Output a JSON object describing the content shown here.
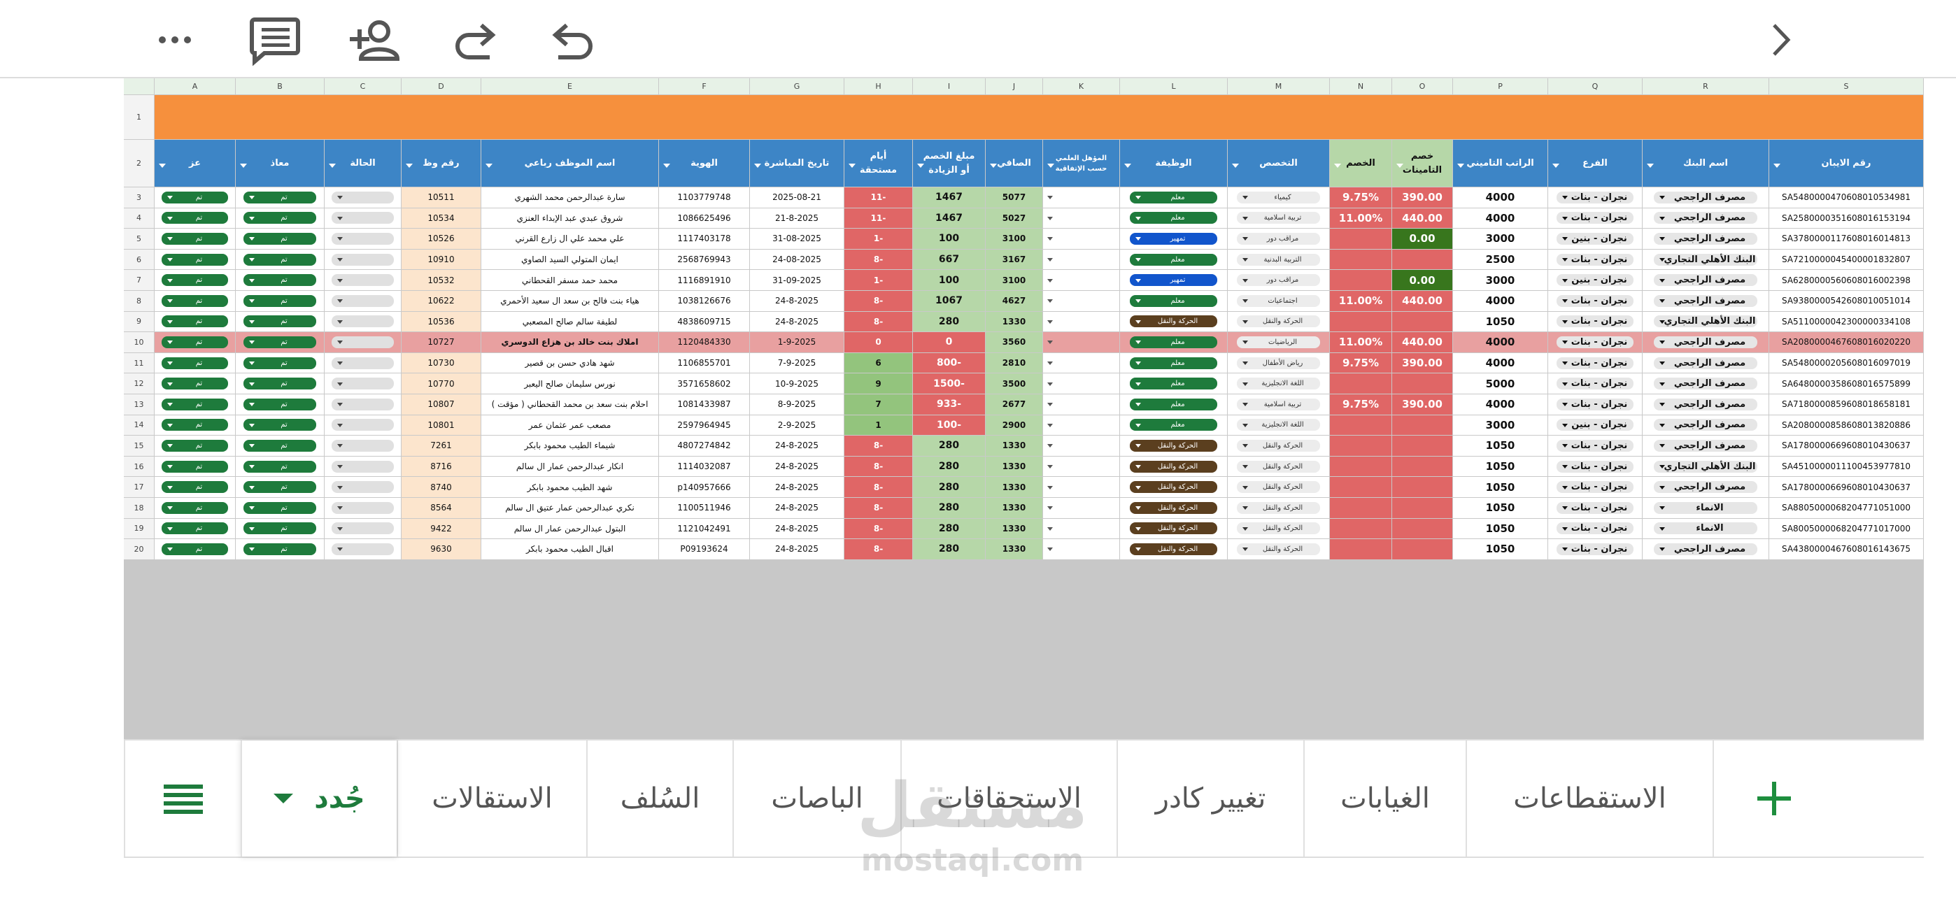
{
  "sheet": {
    "column_letters": [
      "A",
      "B",
      "C",
      "D",
      "E",
      "F",
      "G",
      "H",
      "I",
      "J",
      "K",
      "L",
      "M",
      "N",
      "O",
      "P",
      "Q",
      "R",
      "S"
    ],
    "row_numbers": [
      1,
      2,
      3,
      4,
      5,
      6,
      7,
      8,
      9,
      10,
      11,
      12,
      13,
      14,
      15,
      16,
      17,
      18,
      19,
      20
    ],
    "headers": [
      "عز",
      "معاذ",
      "الحالة",
      "رقم وظ",
      "اسم الموظف رباعي",
      "الهوية",
      "تاريخ المباشرة",
      "أيام مستحقة",
      "مبلغ الخصم أو الزيادة",
      "الصافي",
      "المؤهل العلمي حسب الإتفاقية",
      "الوظيفة",
      "التخصص",
      "الخصم",
      "خصم التامينات",
      "الراتب التاميني",
      "الفرع",
      "اسم البنك",
      "رقم الايبان"
    ],
    "rows": [
      [
        "تم",
        "تم",
        "",
        "10511",
        "سارة عبدالرحمن محمد الشهري",
        "1103779748",
        "2025-08-21",
        "-11",
        "1467",
        "5077",
        "",
        "معلم",
        "كيمياء",
        "9.75%",
        "390.00",
        "4000",
        "نجران - بنات",
        "مصرف الراجحي",
        "SA5480000470608010534981"
      ],
      [
        "تم",
        "تم",
        "",
        "10534",
        "شروق عبدي عبد الإبداء العنزي",
        "1086625496",
        "21-8-2025",
        "-11",
        "1467",
        "5027",
        "",
        "معلم",
        "تربية اسلامية",
        "11.00%",
        "440.00",
        "4000",
        "نجران - بنات",
        "مصرف الراجحي",
        "SA2580000351608016153194"
      ],
      [
        "تم",
        "تم",
        "",
        "10526",
        "علي محمد علي ال زارع القرني",
        "1117403178",
        "31-08-2025",
        "-1",
        "100",
        "3100",
        "",
        "تمهير",
        "مراقب دور",
        "",
        "0.00",
        "3000",
        "نجران - بنين",
        "مصرف الراجحي",
        "SA3780000117608016014813"
      ],
      [
        "تم",
        "تم",
        "",
        "10910",
        "ايمان المتولي السيد الصاوي",
        "2568769943",
        "24-08-2025",
        "-8",
        "667",
        "3167",
        "",
        "معلم",
        "التربية البدنية",
        "",
        "",
        "2500",
        "نجران - بنات",
        "البنك الأهلي التجاري",
        "SA7210000045400001832807"
      ],
      [
        "تم",
        "تم",
        "",
        "10532",
        "محمد حمد مسفر القحطاني",
        "1116891910",
        "31-09-2025",
        "-1",
        "100",
        "3100",
        "",
        "تمهير",
        "مراقب دور",
        "",
        "0.00",
        "3000",
        "نجران - بنين",
        "مصرف الراجحي",
        "SA6280000560608016002398"
      ],
      [
        "تم",
        "تم",
        "",
        "10622",
        "هياء بنت فالح بن سعد ال سعيد الأحمري",
        "1038126676",
        "24-8-2025",
        "-8",
        "1067",
        "4627",
        "",
        "معلم",
        "اجتماعيات",
        "11.00%",
        "440.00",
        "4000",
        "نجران - بنات",
        "مصرف الراجحي",
        "SA9380000542608010051014"
      ],
      [
        "تم",
        "تم",
        "",
        "10536",
        "لطيفة سالم صالح المصعبي",
        "4838609715",
        "24-8-2025",
        "-8",
        "280",
        "1330",
        "",
        "الحركة والنقل",
        "الحركة والنقل",
        "",
        "",
        "1050",
        "نجران - بنات",
        "البنك الأهلي التجاري",
        "SA5110000042300000334108"
      ],
      [
        "تم",
        "تم",
        "",
        "10727",
        "املاك بنت خالد بن هزاع الدوسري",
        "1120484330",
        "1-9-2025",
        "0",
        "0",
        "3560",
        "",
        "معلم",
        "الرياضيات",
        "11.00%",
        "440.00",
        "4000",
        "نجران - بنات",
        "مصرف الراجحي",
        "SA2080000467608016020220"
      ],
      [
        "تم",
        "تم",
        "",
        "10730",
        "شهد هادي حسن بن قصير",
        "1106855701",
        "7-9-2025",
        "6",
        "-800",
        "2810",
        "",
        "معلم",
        "رياض الأطفال",
        "9.75%",
        "390.00",
        "4000",
        "نجران - بنات",
        "مصرف الراجحي",
        "SA5480000205608016097019"
      ],
      [
        "تم",
        "تم",
        "",
        "10770",
        "نورس سليمان صالح اليعبر",
        "3571658602",
        "10-9-2025",
        "9",
        "-1500",
        "3500",
        "",
        "معلم",
        "اللغة الانجليزية",
        "",
        "",
        "5000",
        "نجران - بنات",
        "مصرف الراجحي",
        "SA6480000358608016575899"
      ],
      [
        "تم",
        "تم",
        "",
        "10807",
        "احلام بنت سعد بن محمد القحطاني ( مؤقت )",
        "1081433987",
        "8-9-2025",
        "7",
        "-933",
        "2677",
        "",
        "معلم",
        "تربية اسلامية",
        "9.75%",
        "390.00",
        "4000",
        "نجران - بنات",
        "مصرف الراجحي",
        "SA7180000859608018658181"
      ],
      [
        "تم",
        "تم",
        "",
        "10801",
        "مصعب عمر عثمان عمر",
        "2597964945",
        "2-9-2025",
        "1",
        "-100",
        "2900",
        "",
        "معلم",
        "اللغة الانجليزية",
        "",
        "",
        "3000",
        "نجران - بنين",
        "مصرف الراجحي",
        "SA2080000858608013820886"
      ],
      [
        "تم",
        "تم",
        "",
        "7261",
        "شيماء الطيب محمود بابكر",
        "4807274842",
        "24-8-2025",
        "-8",
        "280",
        "1330",
        "",
        "الحركة والنقل",
        "الحركة والنقل",
        "",
        "",
        "1050",
        "نجران - بنات",
        "مصرف الراجحي",
        "SA1780000669608010430637"
      ],
      [
        "تم",
        "تم",
        "",
        "8716",
        "انكار عبدالرحمن عمار ال سالم",
        "1114032087",
        "24-8-2025",
        "-8",
        "280",
        "1330",
        "",
        "الحركة والنقل",
        "الحركة والنقل",
        "",
        "",
        "1050",
        "نجران - بنات",
        "البنك الأهلي التجاري",
        "SA4510000011100453977810"
      ],
      [
        "تم",
        "تم",
        "",
        "8740",
        "شهد الطيب محمود بابكر",
        "p140957666",
        "24-8-2025",
        "-8",
        "280",
        "1330",
        "",
        "الحركة والنقل",
        "الحركة والنقل",
        "",
        "",
        "1050",
        "نجران - بنات",
        "مصرف الراجحي",
        "SA1780000669608010430637"
      ],
      [
        "تم",
        "تم",
        "",
        "8564",
        "نكري عبدالرحمن عمار عتيق ال سالم",
        "1100511946",
        "24-8-2025",
        "-8",
        "280",
        "1330",
        "",
        "الحركة والنقل",
        "الحركة والنقل",
        "",
        "",
        "1050",
        "نجران - بنات",
        "الانماء",
        "SA8805000068204771051000"
      ],
      [
        "تم",
        "تم",
        "",
        "9422",
        "البتول عبدالرحمن عمار ال سالم",
        "1121042491",
        "24-8-2025",
        "-8",
        "280",
        "1330",
        "",
        "الحركة والنقل",
        "الحركة والنقل",
        "",
        "",
        "1050",
        "نجران - بنات",
        "الانماء",
        "SA8005000068204771017000"
      ],
      [
        "تم",
        "تم",
        "",
        "9630",
        "اقبال الطيب محمود بابكر",
        "P09193624",
        "24-8-2025",
        "-8",
        "280",
        "1330",
        "",
        "الحركة والنقل",
        "الحركة والنقل",
        "",
        "",
        "1050",
        "نجران - بنات",
        "مصرف الراجحي",
        "SA4380000467608016143675"
      ]
    ]
  },
  "tabs": [
    "الاستقطاعات",
    "الغيابات",
    "تغيير كادر",
    "الاستحقاقات",
    "الباصات",
    "السُلف",
    "الاستقالات",
    "جُدد"
  ],
  "watermark": {
    "arabic": "مستقل",
    "latin": "mostaql.com"
  }
}
